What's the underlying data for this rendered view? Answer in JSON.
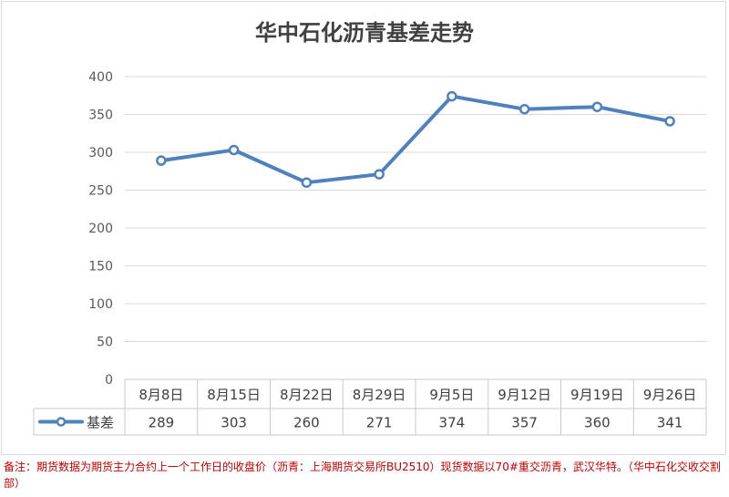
{
  "chart_data": {
    "type": "line",
    "title": "华中石化沥青基差走势",
    "categories": [
      "8月8日",
      "8月15日",
      "8月22日",
      "8月29日",
      "9月5日",
      "9月12日",
      "9月19日",
      "9月26日"
    ],
    "series": [
      {
        "name": "基差",
        "values": [
          289,
          303,
          260,
          271,
          374,
          357,
          360,
          341
        ]
      }
    ],
    "ylim": [
      0,
      400
    ],
    "yticks": [
      0,
      50,
      100,
      150,
      200,
      250,
      300,
      350,
      400
    ],
    "grid": true,
    "legend": "data-table",
    "series_color": "#4f81bd"
  },
  "footnote": "备注：期货数据为期货主力合约上一个工作日的收盘价（沥青：上海期货交易所BU2510）现货数据以70#重交沥青，武汉华特。（华中石化交收交割部）"
}
